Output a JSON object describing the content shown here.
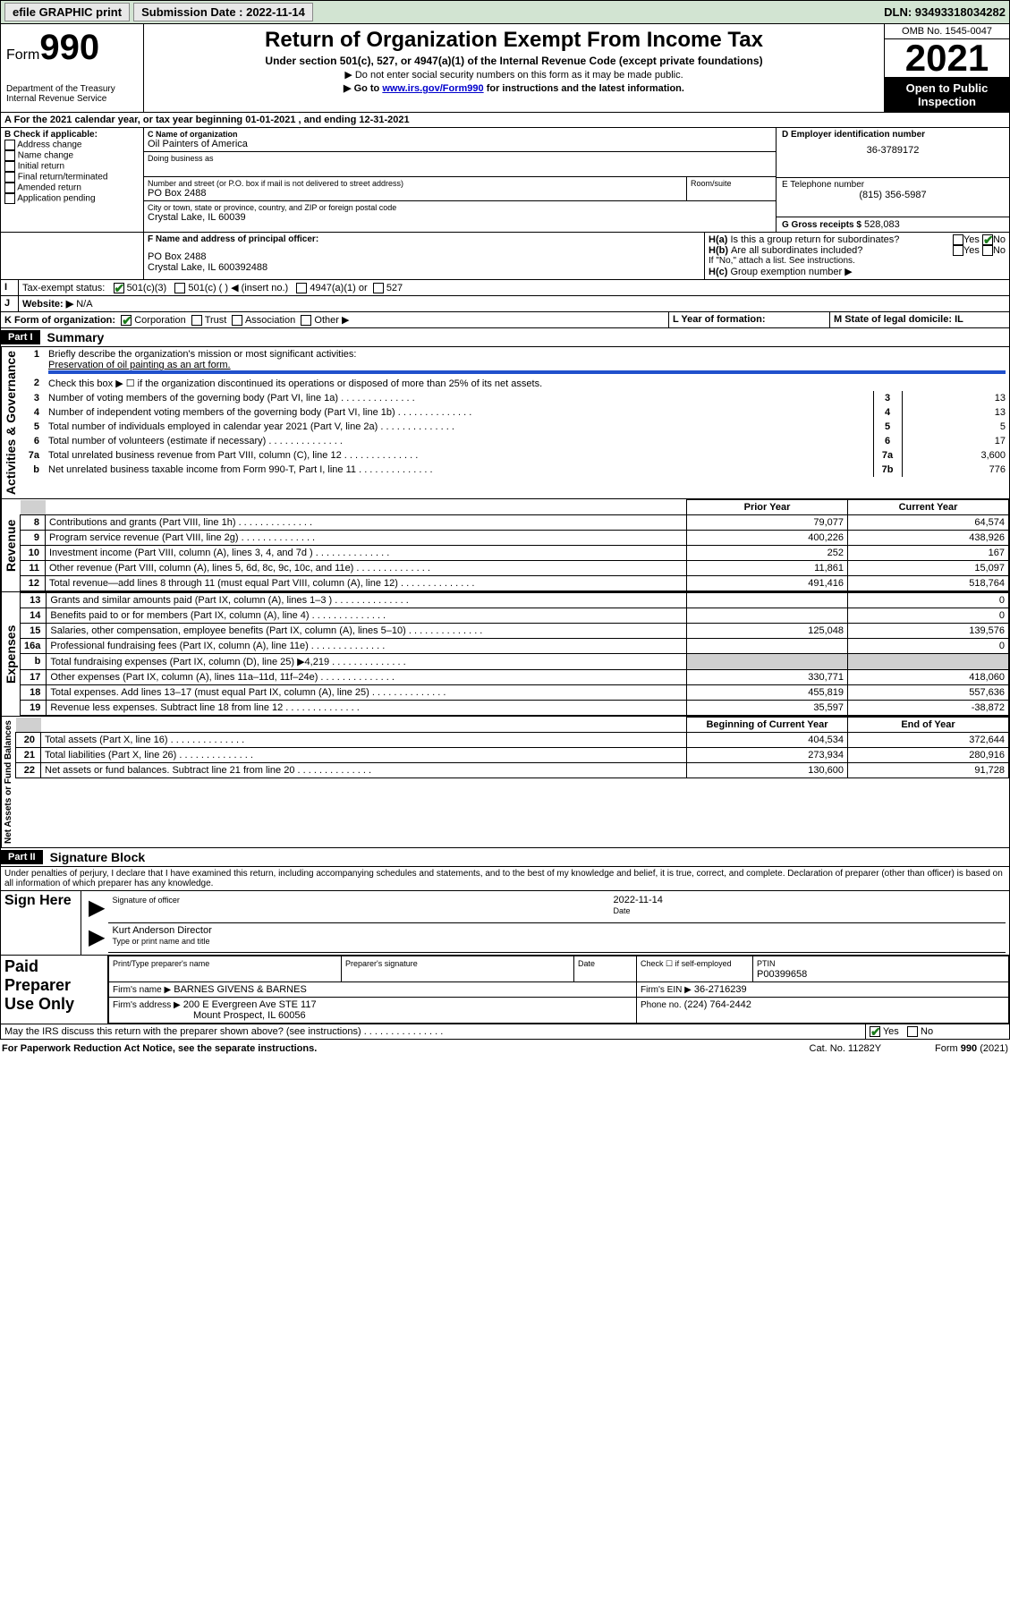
{
  "topbar": {
    "efile": "efile GRAPHIC print",
    "submission_label": "Submission Date : 2022-11-14",
    "dln": "DLN: 93493318034282"
  },
  "header": {
    "form_word": "Form",
    "form_num": "990",
    "dept": "Department of the Treasury",
    "irs": "Internal Revenue Service",
    "title": "Return of Organization Exempt From Income Tax",
    "sub": "Under section 501(c), 527, or 4947(a)(1) of the Internal Revenue Code (except private foundations)",
    "note1": "▶ Do not enter social security numbers on this form as it may be made public.",
    "note2_pre": "▶ Go to ",
    "note2_link": "www.irs.gov/Form990",
    "note2_post": " for instructions and the latest information.",
    "omb": "OMB No. 1545-0047",
    "year": "2021",
    "inspect": "Open to Public Inspection"
  },
  "periodA": "For the 2021 calendar year, or tax year beginning 01-01-2021   , and ending 12-31-2021",
  "sectionB": {
    "label": "B Check if applicable:",
    "items": [
      "Address change",
      "Name change",
      "Initial return",
      "Final return/terminated",
      "Amended return",
      "Application pending"
    ]
  },
  "sectionC": {
    "name_label": "C Name of organization",
    "name": "Oil Painters of America",
    "dba_label": "Doing business as",
    "street_label": "Number and street (or P.O. box if mail is not delivered to street address)",
    "room_label": "Room/suite",
    "street": "PO Box 2488",
    "city_label": "City or town, state or province, country, and ZIP or foreign postal code",
    "city": "Crystal Lake, IL  60039"
  },
  "sectionD": {
    "label": "D Employer identification number",
    "value": "36-3789172"
  },
  "sectionE": {
    "label": "E Telephone number",
    "value": "(815) 356-5987"
  },
  "sectionG": {
    "label": "G Gross receipts $",
    "value": "528,083"
  },
  "sectionF": {
    "label": "F Name and address of principal officer:",
    "line1": "PO Box 2488",
    "line2": "Crystal Lake, IL  600392488"
  },
  "sectionH": {
    "a": "Is this a group return for subordinates?",
    "b": "Are all subordinates included?",
    "yes": "Yes",
    "no": "No",
    "ifno": "If \"No,\" attach a list. See instructions.",
    "c": "Group exemption number ▶"
  },
  "sectionI": {
    "label": "Tax-exempt status:",
    "opt1": "501(c)(3)",
    "opt2": "501(c) (  ) ◀ (insert no.)",
    "opt3": "4947(a)(1) or",
    "opt4": "527"
  },
  "sectionJ": {
    "label": "Website: ▶",
    "value": "N/A"
  },
  "sectionK": {
    "label": "K Form of organization:",
    "corp": "Corporation",
    "trust": "Trust",
    "assoc": "Association",
    "other": "Other ▶"
  },
  "sectionL": {
    "label": "L Year of formation:"
  },
  "sectionM": {
    "label": "M State of legal domicile: IL"
  },
  "part1": {
    "tab": "Part I",
    "title": "Summary",
    "q1_label": "Briefly describe the organization's mission or most significant activities:",
    "q1_value": "Preservation of oil painting as an art form.",
    "q2": "Check this box ▶ ☐  if the organization discontinued its operations or disposed of more than 25% of its net assets.",
    "lines_gov": [
      {
        "n": "3",
        "label": "Number of voting members of the governing body (Part VI, line 1a)",
        "m": "3",
        "v": "13"
      },
      {
        "n": "4",
        "label": "Number of independent voting members of the governing body (Part VI, line 1b)",
        "m": "4",
        "v": "13"
      },
      {
        "n": "5",
        "label": "Total number of individuals employed in calendar year 2021 (Part V, line 2a)",
        "m": "5",
        "v": "5"
      },
      {
        "n": "6",
        "label": "Total number of volunteers (estimate if necessary)",
        "m": "6",
        "v": "17"
      },
      {
        "n": "7a",
        "label": "Total unrelated business revenue from Part VIII, column (C), line 12",
        "m": "7a",
        "v": "3,600"
      },
      {
        "n": "b",
        "label": "Net unrelated business taxable income from Form 990-T, Part I, line 11",
        "m": "7b",
        "v": "776"
      }
    ],
    "col_prior": "Prior Year",
    "col_current": "Current Year",
    "col_begin": "Beginning of Current Year",
    "col_end": "End of Year",
    "lines_rev": [
      {
        "n": "8",
        "label": "Contributions and grants (Part VIII, line 1h)",
        "p": "79,077",
        "c": "64,574"
      },
      {
        "n": "9",
        "label": "Program service revenue (Part VIII, line 2g)",
        "p": "400,226",
        "c": "438,926"
      },
      {
        "n": "10",
        "label": "Investment income (Part VIII, column (A), lines 3, 4, and 7d )",
        "p": "252",
        "c": "167"
      },
      {
        "n": "11",
        "label": "Other revenue (Part VIII, column (A), lines 5, 6d, 8c, 9c, 10c, and 11e)",
        "p": "11,861",
        "c": "15,097"
      },
      {
        "n": "12",
        "label": "Total revenue—add lines 8 through 11 (must equal Part VIII, column (A), line 12)",
        "p": "491,416",
        "c": "518,764"
      }
    ],
    "lines_exp": [
      {
        "n": "13",
        "label": "Grants and similar amounts paid (Part IX, column (A), lines 1–3 )",
        "p": "",
        "c": "0"
      },
      {
        "n": "14",
        "label": "Benefits paid to or for members (Part IX, column (A), line 4)",
        "p": "",
        "c": "0"
      },
      {
        "n": "15",
        "label": "Salaries, other compensation, employee benefits (Part IX, column (A), lines 5–10)",
        "p": "125,048",
        "c": "139,576"
      },
      {
        "n": "16a",
        "label": "Professional fundraising fees (Part IX, column (A), line 11e)",
        "p": "",
        "c": "0"
      },
      {
        "n": "b",
        "label": "Total fundraising expenses (Part IX, column (D), line 25) ▶4,219",
        "p": "shade",
        "c": "shade"
      },
      {
        "n": "17",
        "label": "Other expenses (Part IX, column (A), lines 11a–11d, 11f–24e)",
        "p": "330,771",
        "c": "418,060"
      },
      {
        "n": "18",
        "label": "Total expenses. Add lines 13–17 (must equal Part IX, column (A), line 25)",
        "p": "455,819",
        "c": "557,636"
      },
      {
        "n": "19",
        "label": "Revenue less expenses. Subtract line 18 from line 12",
        "p": "35,597",
        "c": "-38,872"
      }
    ],
    "lines_na": [
      {
        "n": "20",
        "label": "Total assets (Part X, line 16)",
        "p": "404,534",
        "c": "372,644"
      },
      {
        "n": "21",
        "label": "Total liabilities (Part X, line 26)",
        "p": "273,934",
        "c": "280,916"
      },
      {
        "n": "22",
        "label": "Net assets or fund balances. Subtract line 21 from line 20",
        "p": "130,600",
        "c": "91,728"
      }
    ],
    "vlabels": {
      "gov": "Activities & Governance",
      "rev": "Revenue",
      "exp": "Expenses",
      "na": "Net Assets or Fund Balances"
    }
  },
  "part2": {
    "tab": "Part II",
    "title": "Signature Block",
    "decl": "Under penalties of perjury, I declare that I have examined this return, including accompanying schedules and statements, and to the best of my knowledge and belief, it is true, correct, and complete. Declaration of preparer (other than officer) is based on all information of which preparer has any knowledge.",
    "sign_here": "Sign Here",
    "sig_officer": "Signature of officer",
    "date_label": "Date",
    "date_val": "2022-11-14",
    "name_title": "Kurt Anderson  Director",
    "name_title_label": "Type or print name and title",
    "paid": "Paid Preparer Use Only",
    "col_print": "Print/Type preparer's name",
    "col_sig": "Preparer's signature",
    "col_date": "Date",
    "check_self": "Check ☐ if self-employed",
    "ptin_label": "PTIN",
    "ptin": "P00399658",
    "firm_name_label": "Firm's name    ▶",
    "firm_name": "BARNES GIVENS & BARNES",
    "firm_ein_label": "Firm's EIN ▶",
    "firm_ein": "36-2716239",
    "firm_addr_label": "Firm's address ▶",
    "firm_addr1": "200 E Evergreen Ave STE 117",
    "firm_addr2": "Mount Prospect, IL  60056",
    "phone_label": "Phone no.",
    "phone": "(224) 764-2442",
    "discuss": "May the IRS discuss this return with the preparer shown above? (see instructions)",
    "yes": "Yes",
    "no": "No"
  },
  "footer": {
    "pra": "For Paperwork Reduction Act Notice, see the separate instructions.",
    "cat": "Cat. No. 11282Y",
    "form": "Form 990 (2021)"
  }
}
